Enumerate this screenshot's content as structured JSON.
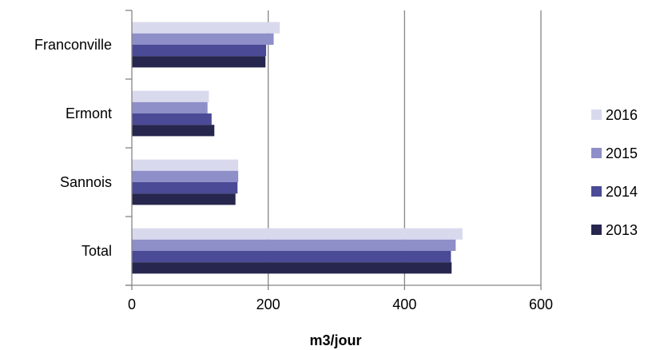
{
  "chart_data": {
    "type": "bar",
    "orientation": "horizontal",
    "categories": [
      "Franconville",
      "Ermont",
      "Sannois",
      "Total"
    ],
    "series": [
      {
        "name": "2016",
        "color": "#D9D9EE",
        "values": [
          217,
          113,
          156,
          485
        ]
      },
      {
        "name": "2015",
        "color": "#8E8EC8",
        "values": [
          208,
          111,
          156,
          475
        ]
      },
      {
        "name": "2014",
        "color": "#4A4A96",
        "values": [
          197,
          117,
          155,
          468
        ]
      },
      {
        "name": "2013",
        "color": "#26264E",
        "values": [
          196,
          121,
          152,
          469
        ]
      }
    ],
    "xlabel": "m3/jour",
    "ylabel": "",
    "title": "",
    "xlim": [
      0,
      600
    ],
    "xticks": [
      "0",
      "200",
      "400",
      "600"
    ],
    "grid": "vertical",
    "legend_position": "right"
  }
}
